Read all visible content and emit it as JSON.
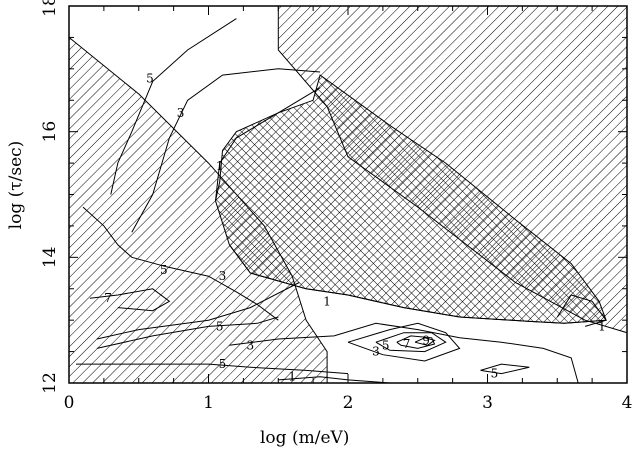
{
  "chart_data": {
    "type": "contour",
    "xlabel": "log (m/eV)",
    "ylabel": "log (τ/sec)",
    "xlim": [
      0,
      4
    ],
    "ylim": [
      12,
      18
    ],
    "x_ticks": [
      0,
      1,
      2,
      3,
      4
    ],
    "y_ticks": [
      12,
      14,
      16,
      18
    ],
    "x_tick_labels": [
      "0",
      "1",
      "2",
      "3",
      "4"
    ],
    "y_tick_labels": [
      "12",
      "14",
      "16",
      "18"
    ],
    "grid": false,
    "colors": {
      "line": "#000000",
      "background": "#ffffff"
    },
    "excluded_regions": [
      {
        "fill": "diagonal-hatch",
        "points": [
          [
            1.5,
            18
          ],
          [
            4,
            18
          ],
          [
            4,
            12.8
          ],
          [
            3.7,
            13.0
          ],
          [
            3.2,
            13.6
          ],
          [
            2.5,
            14.8
          ],
          [
            2.0,
            15.6
          ],
          [
            1.85,
            16.4
          ],
          [
            1.5,
            17.3
          ]
        ]
      },
      {
        "fill": "diagonal-hatch",
        "points": [
          [
            0,
            17.5
          ],
          [
            0.5,
            16.6
          ],
          [
            1.0,
            15.5
          ],
          [
            1.4,
            14.5
          ],
          [
            1.6,
            13.7
          ],
          [
            1.7,
            13.0
          ],
          [
            1.85,
            12.5
          ],
          [
            1.85,
            12
          ],
          [
            0,
            12
          ]
        ]
      },
      {
        "fill": "cross-hatch",
        "points": [
          [
            1.08,
            15.2
          ],
          [
            1.1,
            15.7
          ],
          [
            1.2,
            16.0
          ],
          [
            1.5,
            16.3
          ],
          [
            1.75,
            16.5
          ],
          [
            1.8,
            16.9
          ],
          [
            2.3,
            16.1
          ],
          [
            2.7,
            15.5
          ],
          [
            3.2,
            14.6
          ],
          [
            3.6,
            13.9
          ],
          [
            3.8,
            13.3
          ],
          [
            3.85,
            13.0
          ],
          [
            3.55,
            12.95
          ],
          [
            3.3,
            12.98
          ],
          [
            2.8,
            13.05
          ],
          [
            2.4,
            13.2
          ],
          [
            2.0,
            13.4
          ],
          [
            1.7,
            13.5
          ],
          [
            1.3,
            13.75
          ],
          [
            1.15,
            14.2
          ],
          [
            1.05,
            14.9
          ]
        ]
      }
    ],
    "contours": [
      {
        "level": "5",
        "label": "5",
        "label_at": [
          0.58,
          16.85
        ],
        "points": [
          [
            0.3,
            15.0
          ],
          [
            0.35,
            15.5
          ],
          [
            0.45,
            16.0
          ],
          [
            0.6,
            16.8
          ],
          [
            0.85,
            17.3
          ],
          [
            1.2,
            17.8
          ]
        ]
      },
      {
        "level": "3",
        "label": "3",
        "label_at": [
          0.8,
          16.3
        ],
        "points": [
          [
            0.45,
            14.4
          ],
          [
            0.6,
            15.0
          ],
          [
            0.72,
            15.9
          ],
          [
            0.85,
            16.5
          ],
          [
            1.1,
            16.9
          ],
          [
            1.5,
            17.0
          ],
          [
            1.8,
            16.95
          ]
        ]
      },
      {
        "level": "1",
        "label": "1",
        "label_at": [
          1.08,
          15.45
        ],
        "points": [
          [
            1.05,
            14.9
          ],
          [
            1.08,
            15.5
          ],
          [
            1.2,
            15.9
          ],
          [
            1.5,
            16.3
          ],
          [
            1.8,
            16.7
          ]
        ]
      },
      {
        "level": "1",
        "label": "1",
        "label_at": [
          1.85,
          13.3
        ],
        "points": [
          [
            1.15,
            14.2
          ],
          [
            1.3,
            13.75
          ],
          [
            1.7,
            13.5
          ],
          [
            2.0,
            13.4
          ],
          [
            2.4,
            13.2
          ],
          [
            2.8,
            13.05
          ],
          [
            3.3,
            12.98
          ],
          [
            3.55,
            12.95
          ],
          [
            3.85,
            13.0
          ]
        ]
      },
      {
        "level": "1",
        "label": "1",
        "label_at": [
          3.82,
          12.9
        ],
        "points": [
          [
            3.5,
            13.05
          ],
          [
            3.6,
            13.4
          ],
          [
            3.75,
            13.3
          ],
          [
            3.85,
            13.0
          ],
          [
            3.7,
            12.9
          ]
        ]
      },
      {
        "level": "5",
        "label": "5",
        "label_at": [
          0.68,
          13.8
        ],
        "points": [
          [
            0.1,
            14.8
          ],
          [
            0.25,
            14.5
          ],
          [
            0.35,
            14.2
          ],
          [
            0.45,
            14.0
          ],
          [
            0.7,
            13.85
          ],
          [
            1.0,
            13.7
          ],
          [
            1.2,
            13.45
          ],
          [
            1.35,
            13.25
          ],
          [
            1.5,
            13.0
          ]
        ]
      },
      {
        "level": "7",
        "label": "7",
        "label_at": [
          0.28,
          13.35
        ],
        "points": [
          [
            0.15,
            13.35
          ],
          [
            0.35,
            13.4
          ],
          [
            0.6,
            13.5
          ],
          [
            0.72,
            13.3
          ],
          [
            0.6,
            13.15
          ],
          [
            0.35,
            13.2
          ]
        ]
      },
      {
        "level": "3",
        "label": "3",
        "label_at": [
          1.1,
          13.7
        ],
        "points": [
          [
            0.2,
            12.7
          ],
          [
            0.5,
            12.85
          ],
          [
            1.0,
            13.0
          ],
          [
            1.3,
            13.2
          ],
          [
            1.65,
            13.6
          ]
        ]
      },
      {
        "level": "5",
        "label": "5",
        "label_at": [
          1.08,
          12.9
        ],
        "points": [
          [
            0.2,
            12.55
          ],
          [
            0.6,
            12.75
          ],
          [
            1.0,
            12.9
          ],
          [
            1.35,
            12.95
          ],
          [
            1.5,
            13.05
          ]
        ]
      },
      {
        "level": "3",
        "label": "3",
        "label_at": [
          1.3,
          12.6
        ],
        "points": [
          [
            1.15,
            12.6
          ],
          [
            1.5,
            12.7
          ],
          [
            1.9,
            12.75
          ],
          [
            2.2,
            12.95
          ],
          [
            2.5,
            12.85
          ],
          [
            2.8,
            12.72
          ],
          [
            3.1,
            12.65
          ],
          [
            3.4,
            12.55
          ],
          [
            3.6,
            12.4
          ],
          [
            3.65,
            12.0
          ]
        ]
      },
      {
        "level": "5",
        "label": "5",
        "label_at": [
          1.1,
          12.3
        ],
        "points": [
          [
            0.05,
            12.3
          ],
          [
            0.5,
            12.3
          ],
          [
            1.0,
            12.3
          ],
          [
            1.3,
            12.25
          ],
          [
            1.7,
            12.2
          ],
          [
            2.0,
            12.15
          ]
        ]
      },
      {
        "level": "3",
        "label": "3",
        "label_at": [
          2.2,
          12.5
        ],
        "points": [
          [
            2.0,
            12.65
          ],
          [
            2.3,
            12.85
          ],
          [
            2.5,
            12.95
          ],
          [
            2.7,
            12.8
          ],
          [
            2.8,
            12.55
          ],
          [
            2.55,
            12.35
          ],
          [
            2.25,
            12.45
          ],
          [
            2.0,
            12.65
          ]
        ]
      },
      {
        "level": "5",
        "label": "5",
        "label_at": [
          2.27,
          12.6
        ],
        "points": [
          [
            2.2,
            12.65
          ],
          [
            2.4,
            12.8
          ],
          [
            2.6,
            12.8
          ],
          [
            2.7,
            12.65
          ],
          [
            2.55,
            12.5
          ],
          [
            2.3,
            12.52
          ],
          [
            2.2,
            12.65
          ]
        ]
      },
      {
        "level": "7",
        "label": "7",
        "label_at": [
          2.42,
          12.62
        ],
        "points": [
          [
            2.35,
            12.65
          ],
          [
            2.45,
            12.75
          ],
          [
            2.6,
            12.72
          ],
          [
            2.62,
            12.62
          ],
          [
            2.5,
            12.55
          ],
          [
            2.38,
            12.6
          ],
          [
            2.35,
            12.65
          ]
        ]
      },
      {
        "level": "9",
        "label": "9",
        "label_at": [
          2.56,
          12.68
        ],
        "points": [
          [
            2.48,
            12.65
          ],
          [
            2.55,
            12.72
          ],
          [
            2.62,
            12.68
          ],
          [
            2.57,
            12.6
          ],
          [
            2.48,
            12.65
          ]
        ]
      },
      {
        "level": "5",
        "label": "5",
        "label_at": [
          3.05,
          12.15
        ],
        "points": [
          [
            2.95,
            12.2
          ],
          [
            3.1,
            12.3
          ],
          [
            3.3,
            12.25
          ],
          [
            3.1,
            12.15
          ],
          [
            2.95,
            12.2
          ]
        ]
      },
      {
        "level": "1",
        "label": "1",
        "label_at": [
          1.6,
          12.1
        ],
        "points": [
          [
            1.5,
            12.05
          ],
          [
            1.8,
            12.1
          ],
          [
            2.0,
            12.05
          ],
          [
            2.3,
            12.0
          ]
        ]
      }
    ]
  }
}
